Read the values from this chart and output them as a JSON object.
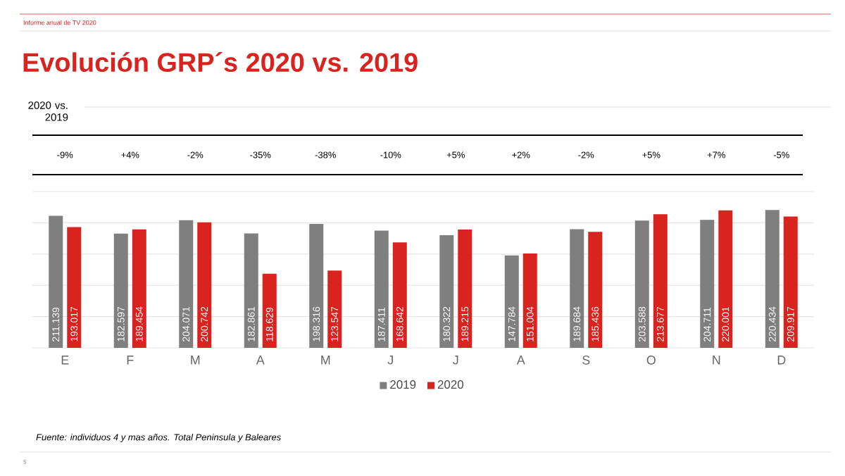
{
  "chart_data": {
    "type": "bar",
    "title": "Evolución GRP´s 2020 vs. 2019",
    "categories": [
      "E",
      "F",
      "M",
      "A",
      "M",
      "J",
      "J",
      "A",
      "S",
      "O",
      "N",
      "D"
    ],
    "series": [
      {
        "name": "2019",
        "color": "#7f7f7f",
        "values": [
          211139,
          182597,
          204071,
          182861,
          198316,
          187411,
          180322,
          147784,
          189684,
          203588,
          204711,
          220434
        ],
        "value_labels": [
          "211.139",
          "182.597",
          "204.071",
          "182.861",
          "198.316",
          "187.411",
          "180.322",
          "147.784",
          "189.684",
          "203.588",
          "204.711",
          "220.434"
        ]
      },
      {
        "name": "2020",
        "color": "#d9231f",
        "values": [
          193017,
          189454,
          200742,
          118629,
          123547,
          168642,
          189215,
          151004,
          185436,
          213677,
          220001,
          209917
        ],
        "value_labels": [
          "193.017",
          "189.454",
          "200.742",
          "118.629",
          "123.547",
          "168.642",
          "189.215",
          "151.004",
          "185.436",
          "213.677",
          "220.001",
          "209.917"
        ]
      }
    ],
    "ylim": [
      0,
      250000
    ],
    "yticks": [
      {
        "value": 0,
        "label": null
      },
      {
        "value": 50000,
        "label": null
      },
      {
        "value": 100000,
        "label": null
      },
      {
        "value": 150000,
        "label": null
      },
      {
        "value": 200000,
        "label": null
      },
      {
        "value": 250000,
        "label": null
      }
    ],
    "tick_labels": "x",
    "grid": "y",
    "legend": "bottom",
    "annotations": [
      "Informe anual de TV 2020",
      "2020 vs. 2019",
      "-9%",
      "+4%",
      "-2%",
      "-35%",
      "-38%",
      "-10%",
      "+5%",
      "+2%",
      "-2%",
      "+5%",
      "+7%",
      "-5%",
      "Fuente: individuos 4 y mas años. Total Peninsula y Baleares",
      "5"
    ]
  }
}
